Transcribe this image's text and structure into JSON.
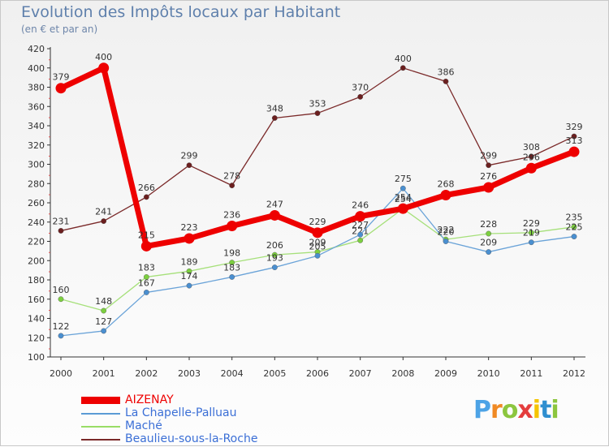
{
  "header": {
    "title": "Evolution des Impôts locaux par Habitant",
    "subtitle": "(en € et par an)"
  },
  "chart_data": {
    "type": "line",
    "title": "Evolution des Impôts locaux par Habitant",
    "subtitle": "(en € et par an)",
    "xlabel": "",
    "ylabel": "",
    "ylim": [
      100,
      420
    ],
    "ytick_step": 20,
    "grid": false,
    "legend_position": "bottom-left",
    "categories": [
      "2000",
      "2001",
      "2002",
      "2003",
      "2004",
      "2005",
      "2006",
      "2007",
      "2008",
      "2009",
      "2010",
      "2011",
      "2012"
    ],
    "series": [
      {
        "name": "AIZENAY",
        "color": "#ee0000",
        "values": [
          379,
          400,
          215,
          223,
          236,
          247,
          229,
          246,
          254,
          268,
          276,
          296,
          313
        ]
      },
      {
        "name": "La Chapelle-Palluau",
        "color": "#5b9bd5",
        "values": [
          122,
          127,
          167,
          174,
          183,
          193,
          205,
          227,
          275,
          220,
          209,
          219,
          225
        ]
      },
      {
        "name": "Maché",
        "color": "#99dd66",
        "values": [
          160,
          148,
          183,
          189,
          198,
          206,
          209,
          221,
          254,
          222,
          228,
          229,
          235
        ]
      },
      {
        "name": "Beaulieu-sous-la-Roche",
        "color": "#7b2a2a",
        "values": [
          231,
          241,
          266,
          299,
          278,
          348,
          353,
          370,
          400,
          386,
          299,
          308,
          329
        ]
      }
    ]
  },
  "legend": {
    "items": [
      {
        "label": "AIZENAY",
        "color": "#ee0000"
      },
      {
        "label": "La Chapelle-Palluau",
        "color": "#5b9bd5"
      },
      {
        "label": "Maché",
        "color": "#99dd66"
      },
      {
        "label": "Beaulieu-sous-la-Roche",
        "color": "#7b2a2a"
      }
    ]
  },
  "logo": {
    "letters": [
      "P",
      "r",
      "o",
      "x",
      "i",
      "t",
      "i"
    ],
    "colors": [
      "#4da3e6",
      "#f08a24",
      "#8cc63f",
      "#e43d3d",
      "#f5c400",
      "#2f8fd0",
      "#8cc63f"
    ]
  }
}
